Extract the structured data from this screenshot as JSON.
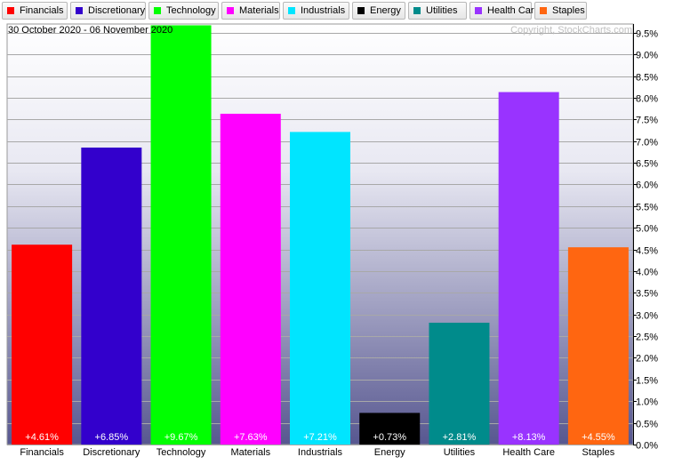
{
  "chart_data": {
    "type": "bar",
    "title": "",
    "date_range": "30 October 2020 - 06 November 2020",
    "copyright": "Copyright, StockCharts.com",
    "categories": [
      "Financials",
      "Discretionary",
      "Technology",
      "Materials",
      "Industrials",
      "Energy",
      "Utilities",
      "Health Care",
      "Staples"
    ],
    "values": [
      4.61,
      6.85,
      9.67,
      7.63,
      7.21,
      0.73,
      2.81,
      8.13,
      4.55
    ],
    "value_labels": [
      "+4.61%",
      "+6.85%",
      "+9.67%",
      "+7.63%",
      "+7.21%",
      "+0.73%",
      "+2.81%",
      "+8.13%",
      "+4.55%"
    ],
    "colors": [
      "#ff0000",
      "#3300cc",
      "#00ff00",
      "#ff00ff",
      "#00e5ff",
      "#000000",
      "#008b8b",
      "#9933ff",
      "#ff6611"
    ],
    "ylim": [
      0,
      9.7
    ],
    "yticks": [
      0,
      0.5,
      1.0,
      1.5,
      2.0,
      2.5,
      3.0,
      3.5,
      4.0,
      4.5,
      5.0,
      5.5,
      6.0,
      6.5,
      7.0,
      7.5,
      8.0,
      8.5,
      9.0,
      9.5
    ],
    "ytick_labels": [
      "0.0%",
      "0.5%",
      "1.0%",
      "1.5%",
      "2.0%",
      "2.5%",
      "3.0%",
      "3.5%",
      "4.0%",
      "4.5%",
      "5.0%",
      "5.5%",
      "6.0%",
      "6.5%",
      "7.0%",
      "7.5%",
      "8.0%",
      "8.5%",
      "9.0%",
      "9.5%"
    ],
    "yaxis_side": "right",
    "grid": true,
    "legend": "top",
    "background_gradient": [
      "#ffffff",
      "#5a5a96"
    ]
  }
}
